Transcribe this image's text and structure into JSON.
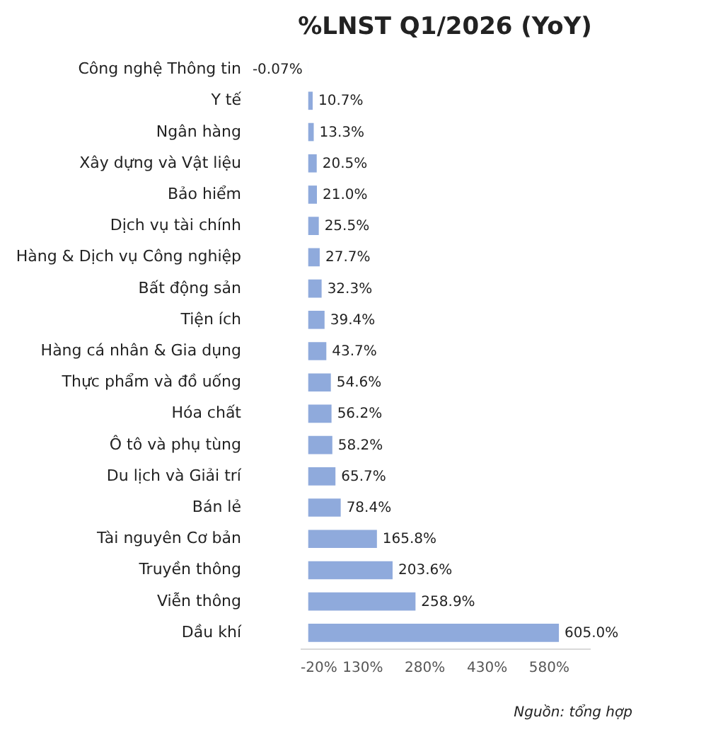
{
  "chart_data": {
    "type": "bar",
    "orientation": "horizontal",
    "title": "%LNST Q1/2026 (YoY)",
    "categories": [
      "Công nghệ Thông tin",
      "Y tế",
      "Ngân hàng",
      "Xây dựng và Vật liệu",
      "Bảo hiểm",
      "Dịch vụ tài chính",
      "Hàng & Dịch vụ Công nghiệp",
      "Bất động sản",
      "Tiện ích",
      "Hàng cá nhân & Gia dụng",
      "Thực phẩm và đồ uống",
      "Hóa chất",
      "Ô tô và phụ tùng",
      "Du lịch và Giải trí",
      "Bán lẻ",
      "Tài nguyên Cơ bản",
      "Truyền thông",
      "Viễn thông",
      "Dầu khí"
    ],
    "values": [
      -0.07,
      10.7,
      13.3,
      20.5,
      21.0,
      25.5,
      27.7,
      32.3,
      39.4,
      43.7,
      54.6,
      56.2,
      58.2,
      65.7,
      78.4,
      165.8,
      203.6,
      258.9,
      605.0
    ],
    "value_labels": [
      "-0.07%",
      "10.7%",
      "13.3%",
      "20.5%",
      "21.0%",
      "25.5%",
      "27.7%",
      "32.3%",
      "39.4%",
      "43.7%",
      "54.6%",
      "56.2%",
      "58.2%",
      "65.7%",
      "78.4%",
      "165.8%",
      "203.6%",
      "258.9%",
      "605.0%"
    ],
    "color": "#8faadc",
    "xlim": [
      -20,
      680
    ],
    "xticks": [
      {
        "value": -20,
        "label": "-20%"
      },
      {
        "value": 130,
        "label": "130%"
      },
      {
        "value": 280,
        "label": "280%"
      },
      {
        "value": 430,
        "label": "430%"
      },
      {
        "value": 580,
        "label": "580%"
      }
    ],
    "grid": false,
    "annotations": [
      "Nguồn: tổng hợp"
    ]
  }
}
